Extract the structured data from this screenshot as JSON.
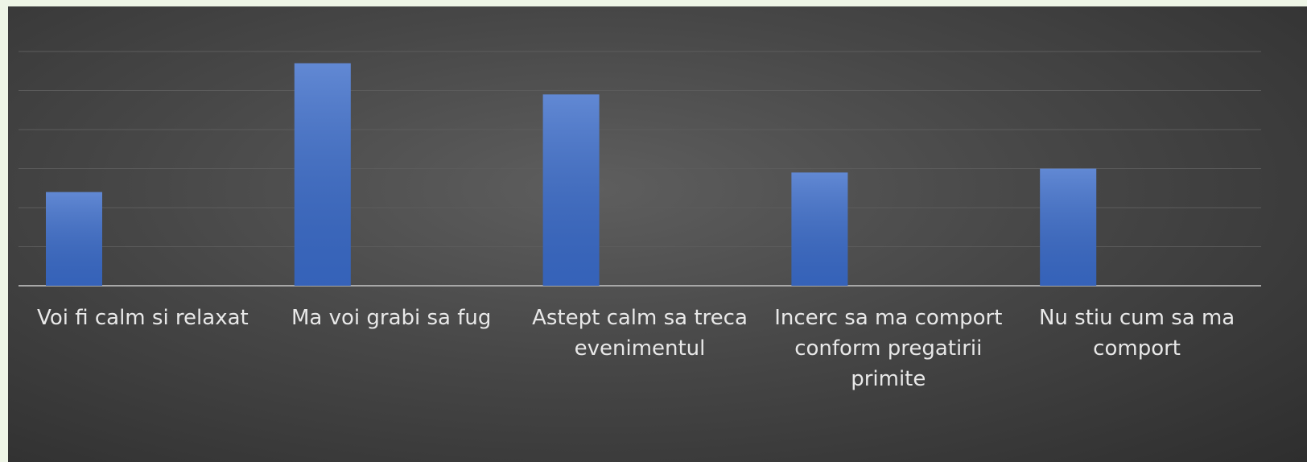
{
  "chart_data": {
    "type": "bar",
    "categories": [
      "Voi fi calm si relaxat",
      "Ma voi grabi sa fug",
      "Astept calm sa treca evenimentul",
      "Incerc sa ma comport conform pregatirii primite",
      "Nu stiu cum sa ma comport"
    ],
    "values": [
      2.4,
      5.7,
      4.9,
      2.9,
      3.0
    ],
    "color": "#3a6bc9",
    "ylim": [
      0,
      6
    ],
    "yticks": [
      0,
      1,
      2,
      3,
      4,
      5,
      6
    ],
    "grid": true
  }
}
